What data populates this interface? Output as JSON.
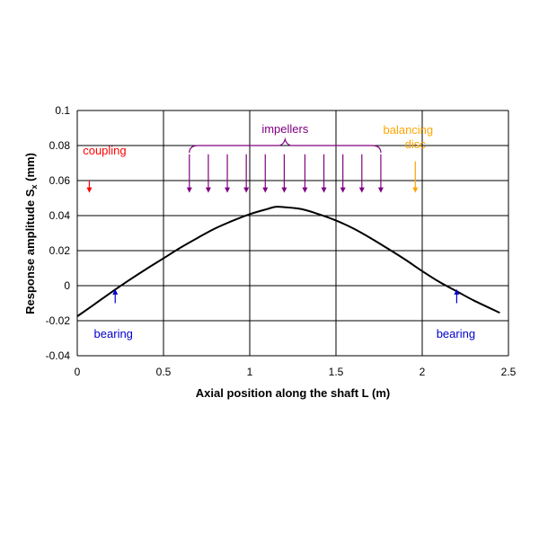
{
  "chart_data": {
    "type": "line",
    "xlabel": "Axial position along the shaft L (m)",
    "ylabel_main": "Response amplitude S",
    "ylabel_sub": "x",
    "ylabel_tail": " (mm)",
    "xlim": [
      0,
      2.5
    ],
    "ylim": [
      -0.04,
      0.1
    ],
    "xticks": [
      "0",
      "0.5",
      "1",
      "1.5",
      "2",
      "2.5"
    ],
    "yticks": [
      "-0.04",
      "-0.02",
      "0",
      "0.02",
      "0.04",
      "0.06",
      "0.08",
      "0.1"
    ],
    "grid": true,
    "series": [
      {
        "x": [
          0,
          0.1,
          0.2,
          0.3,
          0.4,
          0.5,
          0.6,
          0.7,
          0.8,
          0.9,
          1.0,
          1.1,
          1.15,
          1.2,
          1.3,
          1.4,
          1.5,
          1.6,
          1.7,
          1.8,
          1.9,
          2.0,
          2.1,
          2.2,
          2.3,
          2.45
        ],
        "y": [
          -0.0175,
          -0.0106,
          -0.0036,
          0.0031,
          0.0095,
          0.0156,
          0.0218,
          0.0274,
          0.0327,
          0.037,
          0.0408,
          0.0437,
          0.045,
          0.0448,
          0.0437,
          0.0408,
          0.0372,
          0.0327,
          0.0272,
          0.0212,
          0.015,
          0.0083,
          0.0021,
          -0.0032,
          -0.0085,
          -0.0155
        ],
        "color": "#000000"
      }
    ],
    "annotations": {
      "coupling": {
        "label": "coupling",
        "color": "#ff0000",
        "x": 0.07,
        "y_from": 0.06,
        "y_to": 0.053
      },
      "impellers": {
        "label": "impellers",
        "color": "#800080",
        "x_positions": [
          0.65,
          0.76,
          0.87,
          0.98,
          1.09,
          1.2,
          1.32,
          1.43,
          1.54,
          1.65,
          1.76
        ],
        "y_from": 0.06,
        "y_to": 0.053
      },
      "balancing_disc": {
        "label_line1": "balancing",
        "label_line2": "disc",
        "color": "#ffa500",
        "x": 1.96,
        "y_from": 0.06,
        "y_to": 0.053
      },
      "bearing_left": {
        "label": "bearing",
        "color": "#0000cc",
        "x": 0.22,
        "y_from": -0.01,
        "y_to": -0.002
      },
      "bearing_right": {
        "label": "bearing",
        "color": "#0000cc",
        "x": 2.2,
        "y_from": -0.01,
        "y_to": -0.002
      }
    }
  }
}
